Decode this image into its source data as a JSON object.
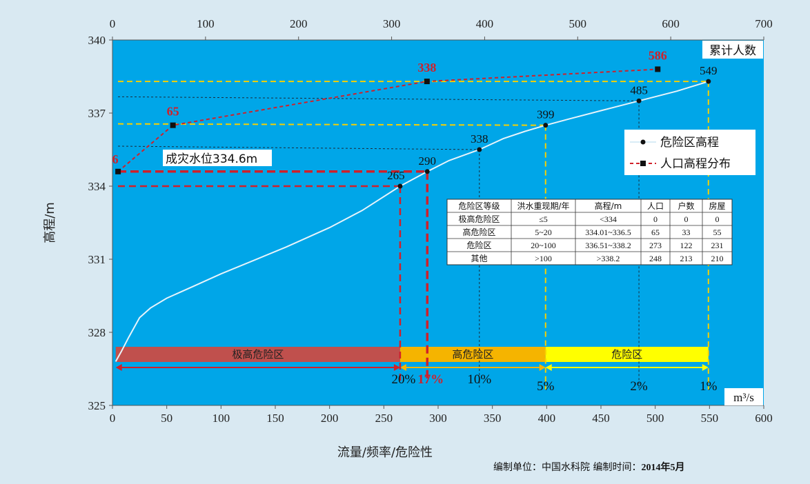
{
  "chart_data": {
    "type": "line",
    "ylabel": "高程/m",
    "xlabel": "流量/频率/危险性",
    "x_unit": "m³/s",
    "y2_label": "累计人数",
    "ylim": [
      325,
      340
    ],
    "yticks": [
      325,
      328,
      331,
      334,
      337,
      340
    ],
    "xlim_bottom": [
      0,
      600
    ],
    "xticks_bottom": [
      0,
      50,
      100,
      150,
      200,
      250,
      300,
      350,
      400,
      450,
      500,
      550,
      600
    ],
    "xlim_top": [
      0,
      700
    ],
    "xticks_top": [
      0,
      100,
      200,
      300,
      400,
      500,
      600,
      700
    ],
    "legend": [
      {
        "name": "危险区高程",
        "color": "#e8f4fb"
      },
      {
        "name": "人口高程分布",
        "color": "#d0202a"
      }
    ],
    "series": [
      {
        "name": "危险区高程",
        "axis": "bottom",
        "x": [
          3,
          8,
          15,
          25,
          35,
          50,
          75,
          100,
          130,
          160,
          200,
          230,
          265,
          290,
          310,
          338,
          360,
          380,
          399,
          420,
          450,
          485,
          520,
          549
        ],
        "y": [
          326.8,
          327.2,
          327.8,
          328.6,
          329.0,
          329.4,
          329.9,
          330.4,
          330.95,
          331.5,
          332.3,
          333.0,
          334.0,
          334.6,
          335.05,
          335.5,
          335.95,
          336.25,
          336.5,
          336.75,
          337.1,
          337.5,
          337.9,
          338.3
        ],
        "labels": [
          {
            "x": 265,
            "y": 334.0,
            "text": "265"
          },
          {
            "x": 290,
            "y": 334.6,
            "text": "290"
          },
          {
            "x": 338,
            "y": 335.5,
            "text": "338"
          },
          {
            "x": 399,
            "y": 336.5,
            "text": "399"
          },
          {
            "x": 485,
            "y": 337.5,
            "text": "485"
          },
          {
            "x": 549,
            "y": 338.3,
            "text": "549"
          }
        ]
      },
      {
        "name": "人口高程分布",
        "axis": "top",
        "x": [
          6,
          65,
          338,
          586
        ],
        "y": [
          334.6,
          336.5,
          338.3,
          338.8
        ],
        "labels": [
          "6",
          "65",
          "338",
          "586"
        ]
      }
    ],
    "annotations": {
      "flood_level_label": "成灾水位334.6m",
      "flood_level": 334.6,
      "flood_flow": 290,
      "flood_freq": "17%",
      "zones": [
        {
          "name": "极高危险区",
          "x0": 3,
          "x1": 265,
          "color": "#c0504d"
        },
        {
          "name": "高危险区",
          "x0": 265,
          "x1": 399,
          "color": "#f5b400"
        },
        {
          "name": "危险区",
          "x0": 399,
          "x1": 549,
          "color": "#ffff00"
        }
      ],
      "frequencies": [
        {
          "x": 265,
          "text": "20%"
        },
        {
          "x": 338,
          "text": "10%"
        },
        {
          "x": 399,
          "text": "5%"
        },
        {
          "x": 485,
          "text": "2%"
        },
        {
          "x": 549,
          "text": "1%"
        }
      ]
    },
    "table": {
      "headers": [
        "危险区等级",
        "洪水重现期/年",
        "高程/m",
        "人口",
        "户数",
        "房屋"
      ],
      "rows": [
        [
          "极高危险区",
          "≤5",
          "<334",
          "0",
          "0",
          "0"
        ],
        [
          "高危险区",
          "5~20",
          "334.01~336.5",
          "65",
          "33",
          "55"
        ],
        [
          "危险区",
          "20~100",
          "336.51~338.2",
          "273",
          "122",
          "231"
        ],
        [
          "其他",
          ">100",
          ">338.2",
          "248",
          "213",
          "210"
        ]
      ]
    }
  },
  "footer": {
    "unit_label": "编制单位：",
    "unit_value": "中国水科院",
    "time_label": " 编制时间：",
    "time_value": "2014年5月"
  }
}
